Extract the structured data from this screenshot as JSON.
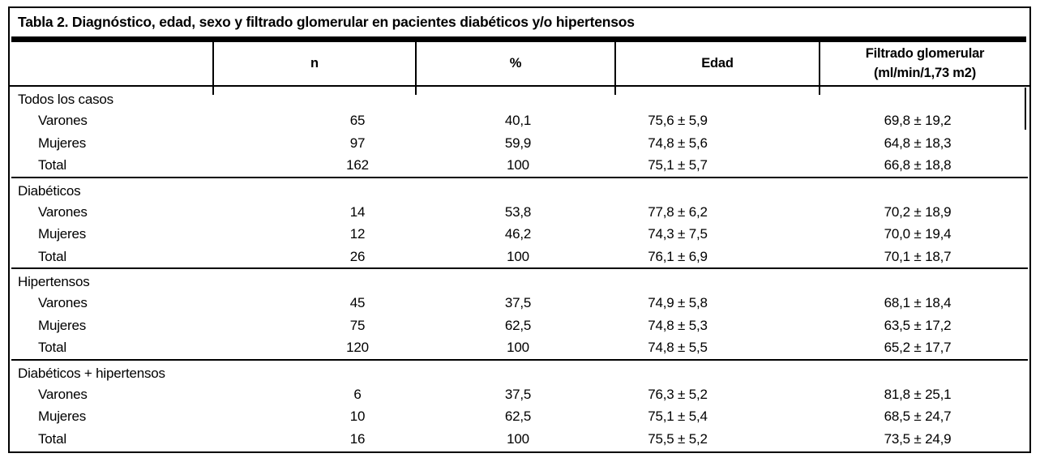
{
  "title": "Tabla 2. Diagnóstico, edad, sexo y filtrado glomerular en pacientes diabéticos y/o hipertensos",
  "header": {
    "col_label": "",
    "col_n": "n",
    "col_pct": "%",
    "col_edad": "Edad",
    "col_fg_line1": "Filtrado glomerular",
    "col_fg_line2": "(ml/min/1,73 m2)"
  },
  "sections": [
    {
      "label": "Todos los casos",
      "rows": [
        {
          "label": "Varones",
          "n": "65",
          "pct": "40,1",
          "edad": "75,6 ± 5,9",
          "fg": "69,8 ± 19,2"
        },
        {
          "label": "Mujeres",
          "n": "97",
          "pct": "59,9",
          "edad": "74,8 ± 5,6",
          "fg": "64,8 ± 18,3"
        },
        {
          "label": "Total",
          "n": "162",
          "pct": "100",
          "edad": "75,1 ± 5,7",
          "fg": "66,8 ± 18,8"
        }
      ]
    },
    {
      "label": "Diabéticos",
      "rows": [
        {
          "label": "Varones",
          "n": "14",
          "pct": "53,8",
          "edad": "77,8 ± 6,2",
          "fg": "70,2 ± 18,9"
        },
        {
          "label": "Mujeres",
          "n": "12",
          "pct": "46,2",
          "edad": "74,3 ± 7,5",
          "fg": "70,0 ± 19,4"
        },
        {
          "label": "Total",
          "n": "26",
          "pct": "100",
          "edad": "76,1 ± 6,9",
          "fg": "70,1 ± 18,7"
        }
      ]
    },
    {
      "label": "Hipertensos",
      "rows": [
        {
          "label": "Varones",
          "n": "45",
          "pct": "37,5",
          "edad": "74,9 ± 5,8",
          "fg": "68,1 ± 18,4"
        },
        {
          "label": "Mujeres",
          "n": "75",
          "pct": "62,5",
          "edad": "74,8 ± 5,3",
          "fg": "63,5 ± 17,2"
        },
        {
          "label": "Total",
          "n": "120",
          "pct": "100",
          "edad": "74,8 ± 5,5",
          "fg": "65,2 ± 17,7"
        }
      ]
    },
    {
      "label": "Diabéticos + hipertensos",
      "rows": [
        {
          "label": "Varones",
          "n": "6",
          "pct": "37,5",
          "edad": "76,3 ± 5,2",
          "fg": "81,8 ± 25,1"
        },
        {
          "label": "Mujeres",
          "n": "10",
          "pct": "62,5",
          "edad": "75,1 ± 5,4",
          "fg": "68,5 ± 24,7"
        },
        {
          "label": "Total",
          "n": "16",
          "pct": "100",
          "edad": "75,5 ± 5,2",
          "fg": "73,5 ± 24,9"
        }
      ]
    }
  ],
  "colors": {
    "ink": "#000000",
    "background": "#ffffff"
  }
}
